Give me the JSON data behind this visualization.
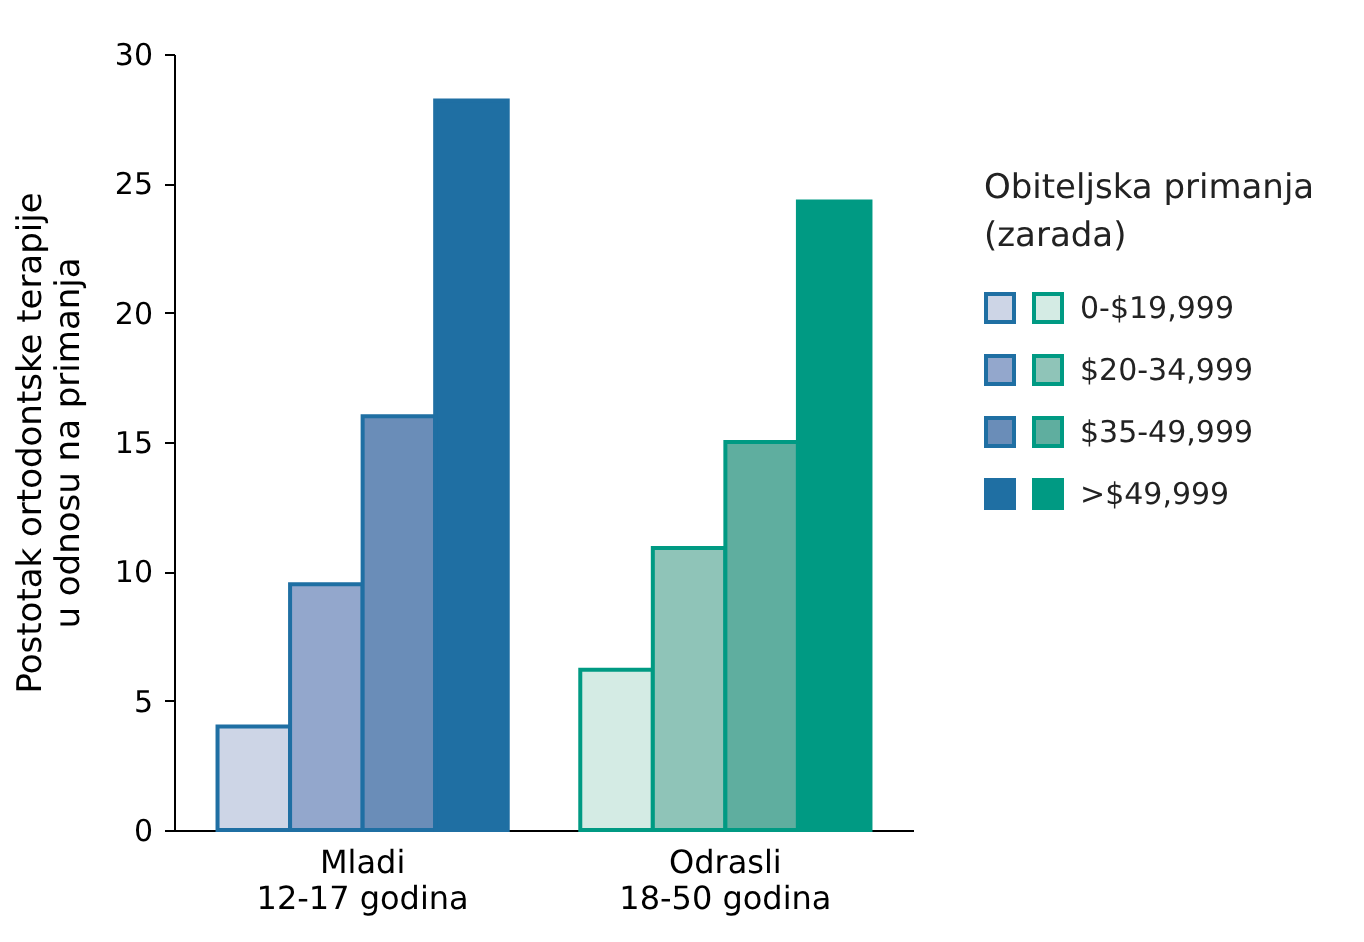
{
  "chart_data": {
    "type": "bar",
    "ylabel": "Postotak ortodontske terapije\nu odnosu na primanja",
    "legend_title": "Obiteljska primanja\n(zarada)",
    "legend": "right",
    "categories": [
      "Mladi\n12-17 godina",
      "Odrasli\n18-50 godina"
    ],
    "series": [
      {
        "name": "0-$19,999",
        "colors": [
          "#cdd5e6",
          "#d4ebe4"
        ],
        "values": [
          4,
          6.2
        ]
      },
      {
        "name": "$20-34,999",
        "colors": [
          "#93a7cc",
          "#8fc4b8"
        ],
        "values": [
          9.5,
          10.9
        ]
      },
      {
        "name": "$35-49,999",
        "colors": [
          "#6a8db8",
          "#5fae9f"
        ],
        "values": [
          16,
          15
        ]
      },
      {
        "name": ">$49,999",
        "colors": [
          "#1f6fa3",
          "#009a83"
        ],
        "values": [
          28.2,
          24.3
        ]
      }
    ],
    "ylim": [
      0,
      30
    ],
    "yticks": [
      0,
      5,
      10,
      15,
      20,
      25,
      30
    ],
    "grid": false
  }
}
